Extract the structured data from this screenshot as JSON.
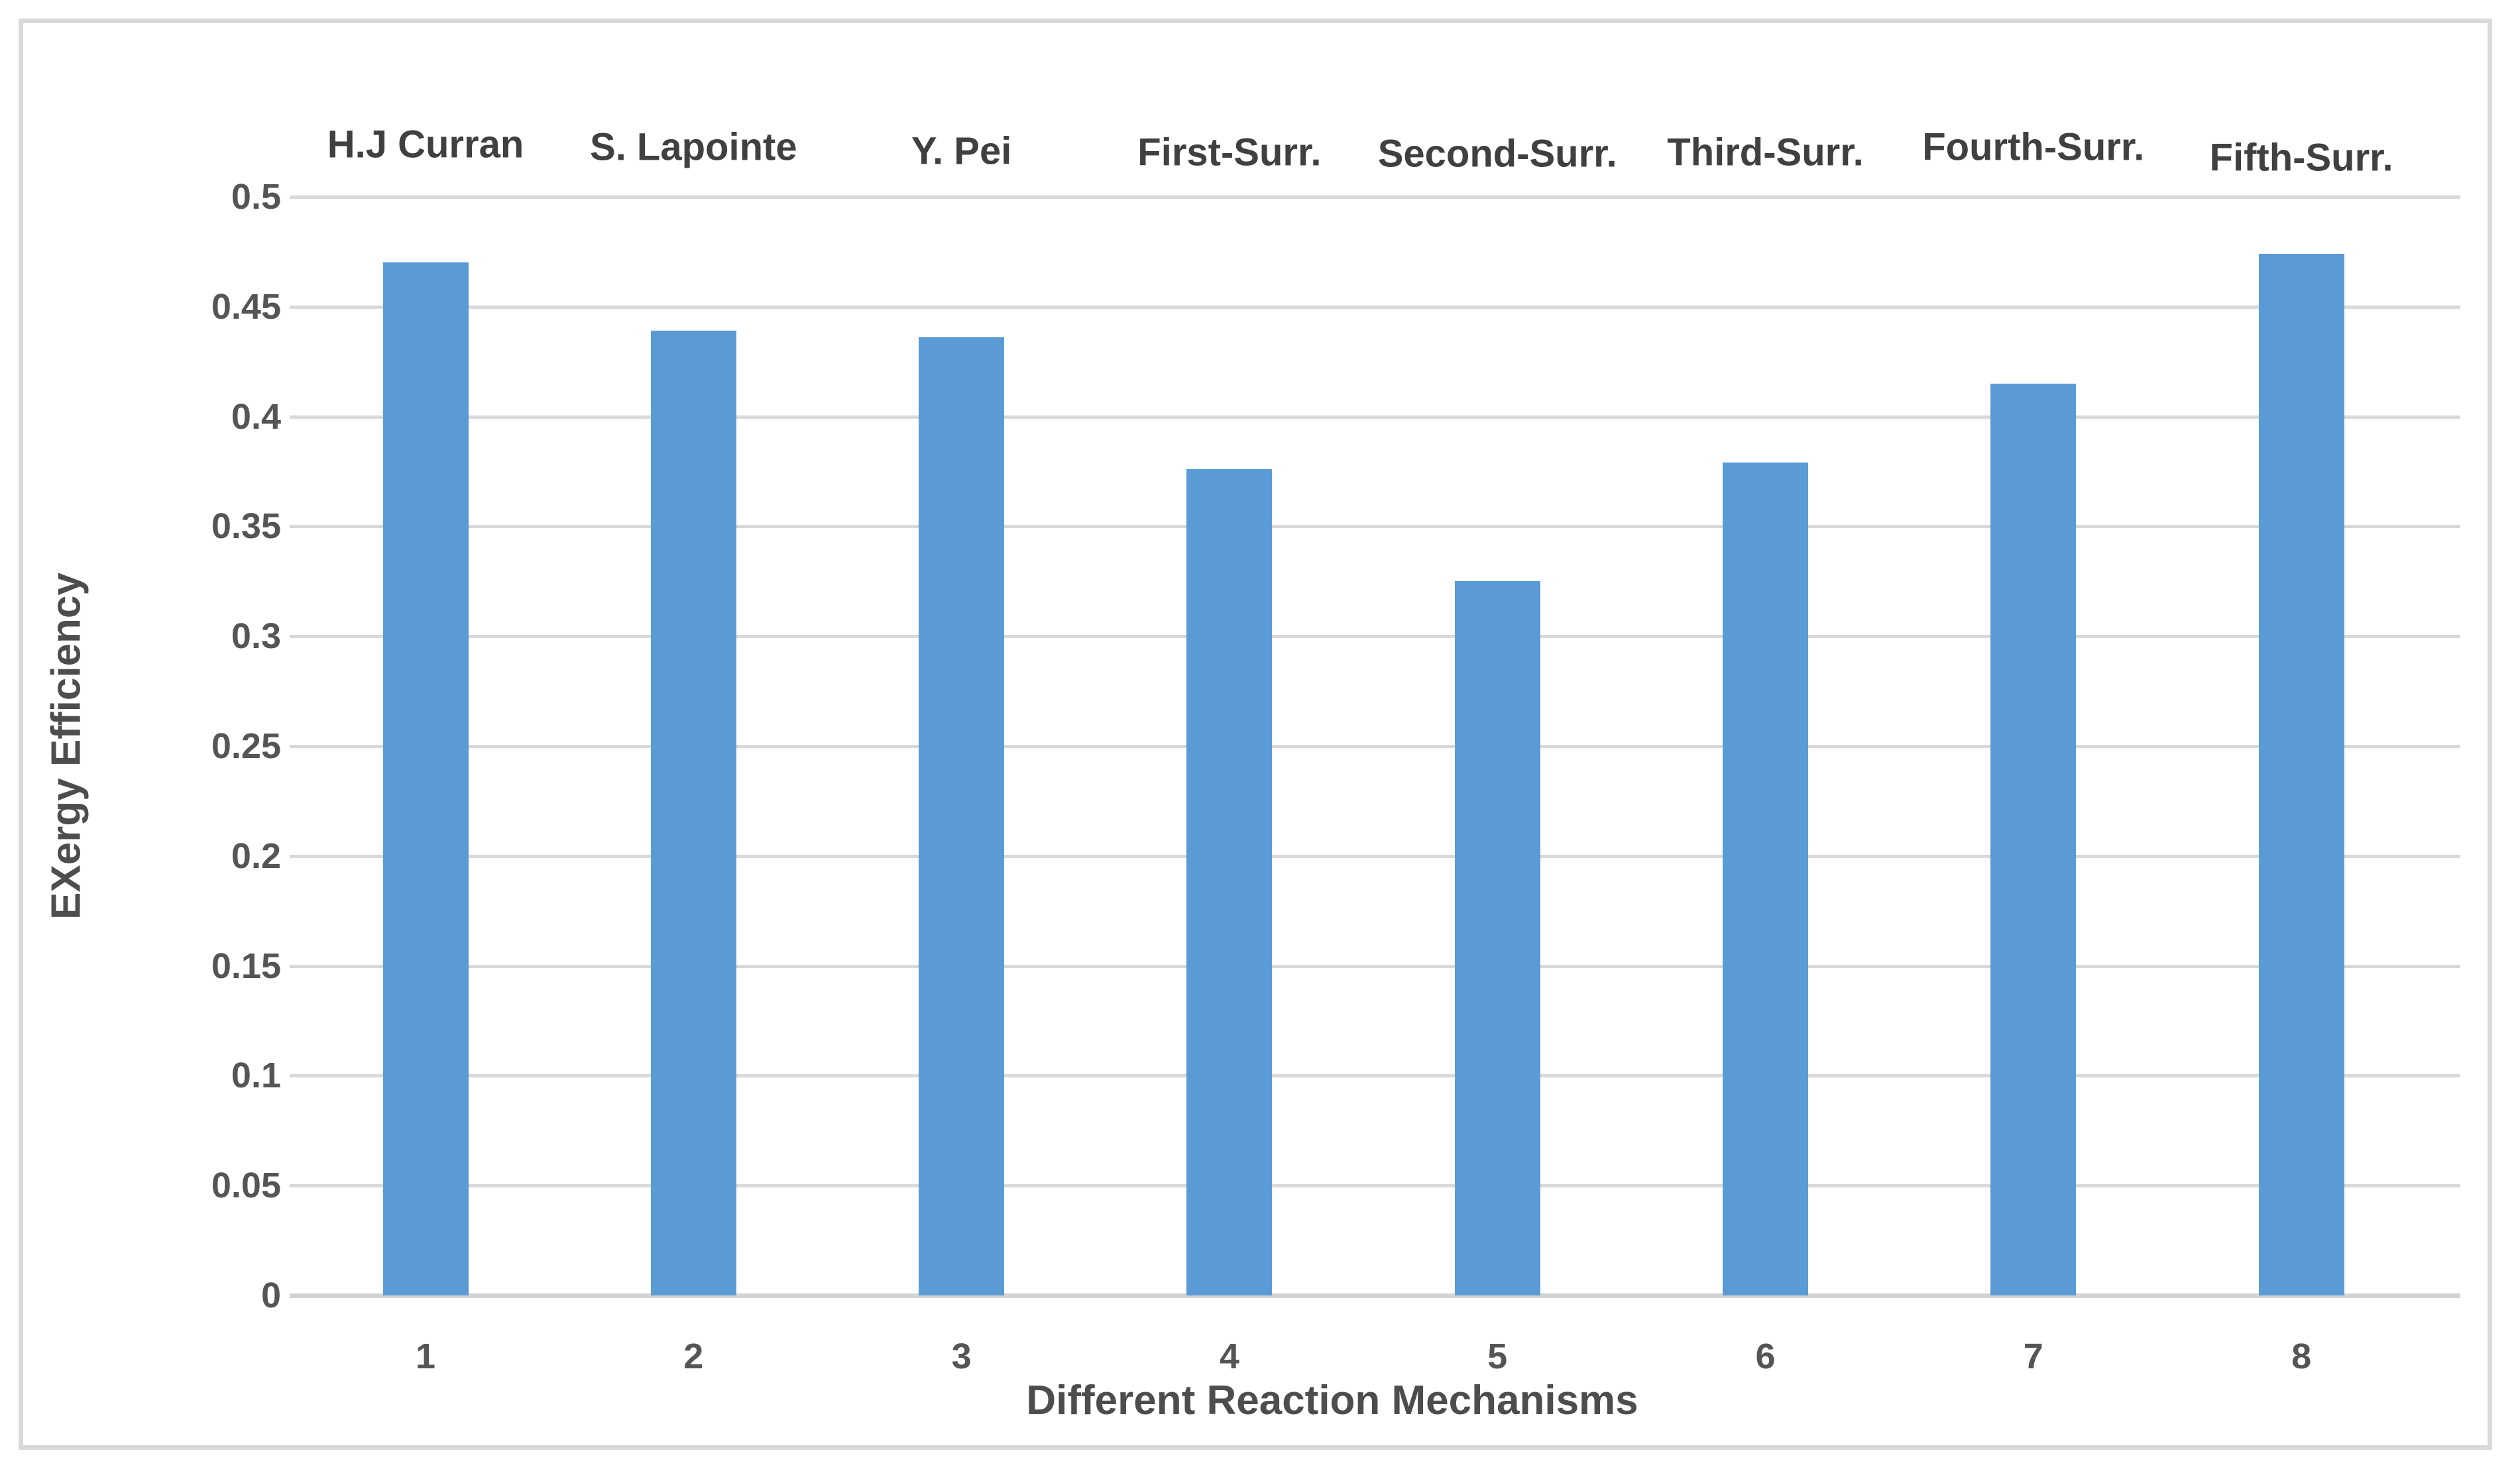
{
  "figure": {
    "background_color": "#ffffff",
    "border_color": "#d9d9d9"
  },
  "colors": {
    "bar": "#5b9bd5",
    "gridline": "#d9d9d9",
    "tick_text": "#555555",
    "label_text": "#404040"
  },
  "chart_data": {
    "type": "bar",
    "title": "",
    "categories": [
      "1",
      "2",
      "3",
      "4",
      "5",
      "6",
      "7",
      "8"
    ],
    "bar_labels": [
      "H.J Curran",
      "S. Lapointe",
      "Y. Pei",
      "First-Surr.",
      "Second-Surr.",
      "Third-Surr.",
      "Fourth-Surr.",
      "Fifth-Surr."
    ],
    "values": [
      0.47,
      0.439,
      0.436,
      0.376,
      0.325,
      0.379,
      0.415,
      0.474
    ],
    "xlabel": "Different Reaction Mechanisms",
    "ylabel": "EXergy Efficiency",
    "ylim": [
      0,
      0.5
    ],
    "ytick_step": 0.05,
    "ytick_labels": [
      "0.5",
      "0.45",
      "0.4",
      "0.35",
      "0.3",
      "0.25",
      "0.2",
      "0.15",
      "0.1",
      "0.05",
      "0"
    ],
    "grid": true,
    "legend_position": "none",
    "bar_color": "#5b9bd5"
  }
}
